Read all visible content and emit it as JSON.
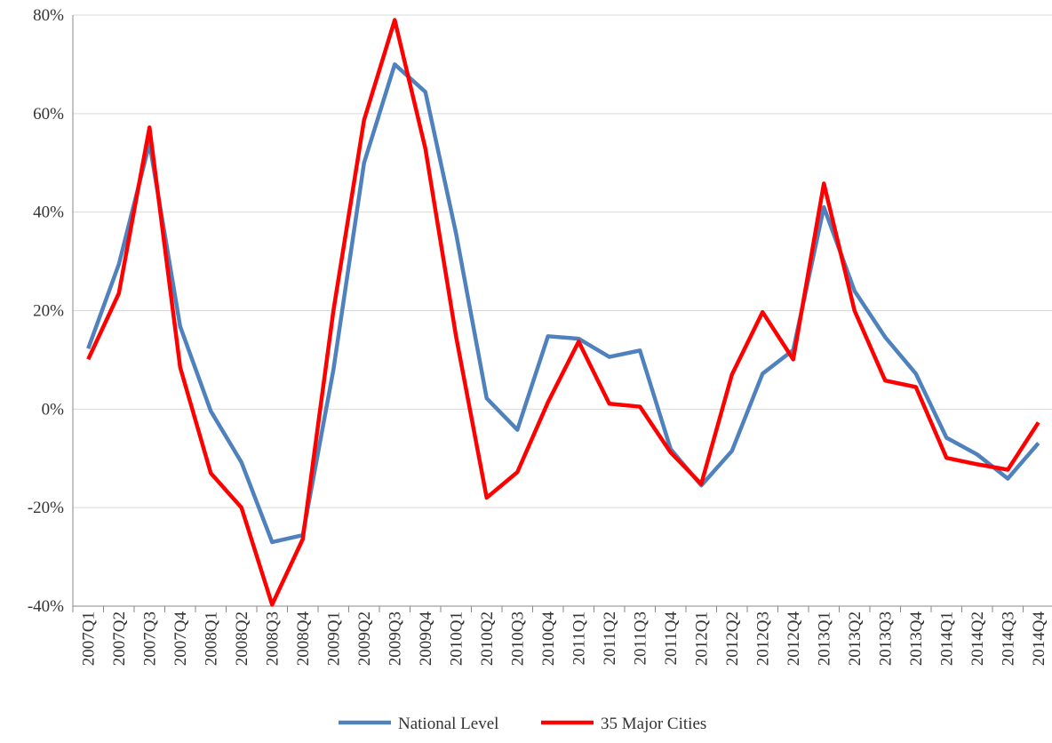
{
  "chart_data": {
    "type": "line",
    "categories": [
      "2007Q1",
      "2007Q2",
      "2007Q3",
      "2007Q4",
      "2008Q1",
      "2008Q2",
      "2008Q3",
      "2008Q4",
      "2009Q1",
      "2009Q2",
      "2009Q3",
      "2009Q4",
      "2010Q1",
      "2010Q2",
      "2010Q3",
      "2010Q4",
      "2011Q1",
      "2011Q2",
      "2011Q3",
      "2011Q4",
      "2012Q1",
      "2012Q2",
      "2012Q3",
      "2012Q4",
      "2013Q1",
      "2013Q2",
      "2013Q3",
      "2013Q4",
      "2014Q1",
      "2014Q2",
      "2014Q3",
      "2014Q4"
    ],
    "series": [
      {
        "name": "National Level",
        "color": "#4f81bd",
        "values": [
          12.3,
          29.4,
          54,
          16.8,
          -0.4,
          -10.8,
          -27,
          -25.6,
          8,
          50,
          70,
          64.4,
          35.7,
          2.2,
          -4.2,
          14.8,
          14.3,
          10.6,
          11.9,
          -8.1,
          -15.5,
          -8.5,
          7.2,
          12,
          41,
          24,
          14.6,
          7.2,
          -5.8,
          -9.2,
          -14.1,
          -6.9
        ]
      },
      {
        "name": "35 Major Cities",
        "color": "#ff0000",
        "values": [
          10.1,
          23.5,
          57.2,
          8.5,
          -13,
          -20,
          -39.7,
          -26.4,
          20,
          58.7,
          79,
          52.9,
          14.8,
          -18,
          -12.8,
          1.4,
          13.7,
          1.1,
          0.5,
          -8.8,
          -15.2,
          7,
          19.7,
          10.1,
          45.8,
          20,
          5.8,
          4.5,
          -9.9,
          -11.2,
          -12.3,
          -2.7
        ]
      }
    ],
    "ylim": [
      -40,
      80
    ],
    "yticks": [
      {
        "value": -40,
        "label": "-40%"
      },
      {
        "value": -20,
        "label": "-20%"
      },
      {
        "value": 0,
        "label": "0%"
      },
      {
        "value": 20,
        "label": "20%"
      },
      {
        "value": 40,
        "label": "40%"
      },
      {
        "value": 60,
        "label": "60%"
      },
      {
        "value": 80,
        "label": "80%"
      }
    ],
    "grid": true,
    "legend": "bottom"
  }
}
